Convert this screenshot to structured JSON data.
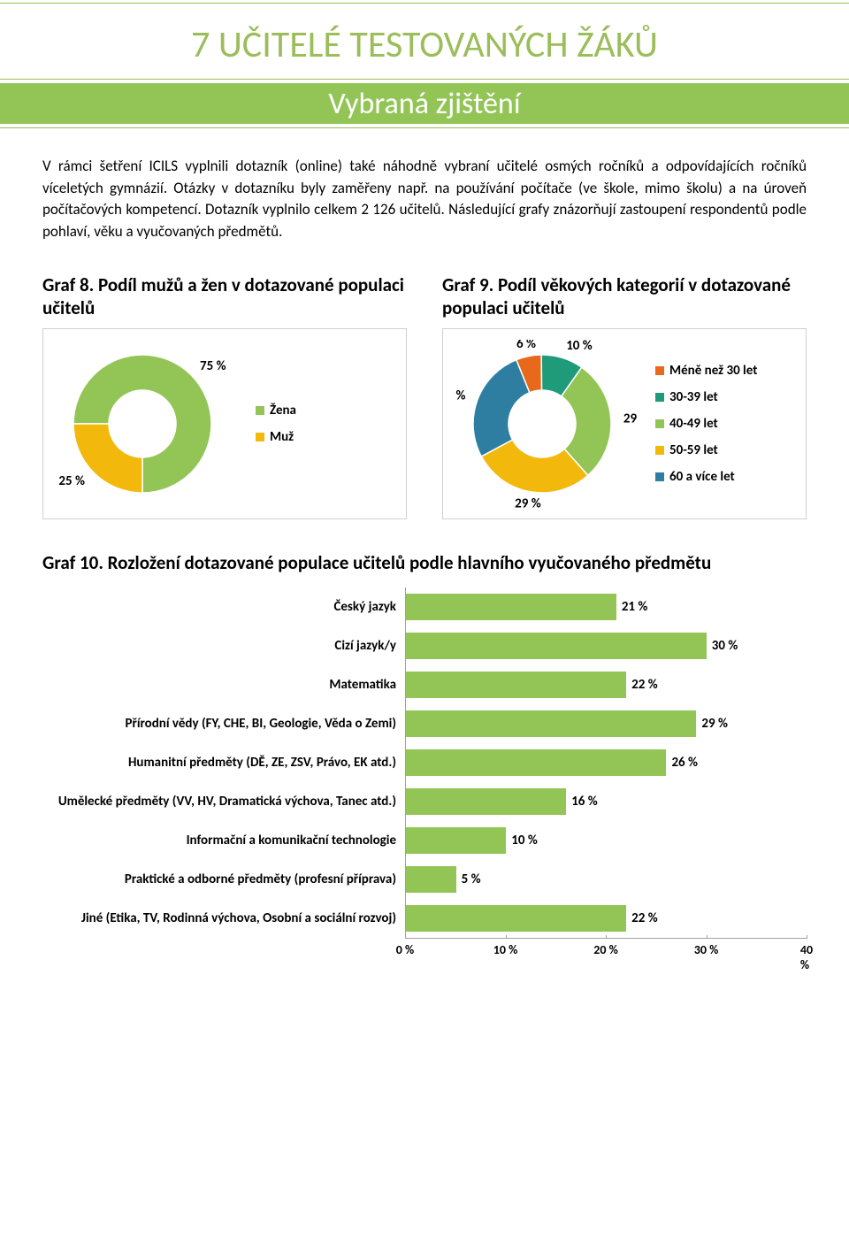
{
  "colors": {
    "accent_green": "#9bbd5a",
    "band_green": "#92c556",
    "bar_green": "#92c556",
    "white": "#ffffff",
    "black": "#000000"
  },
  "header": {
    "chapter_title": "7   UČITELÉ TESTOVANÝCH ŽÁKŮ",
    "subtitle": "Vybraná zjištění"
  },
  "body": {
    "paragraph": "V rámci šetření ICILS vyplnili dotazník (online) také náhodně vybraní učitelé osmých ročníků a odpovídajících ročníků víceletých gymnázií. Otázky v dotazníku byly zaměřeny např. na používání počítače (ve škole, mimo školu) a na úroveň počítačových kompetencí. Dotazník vyplnilo celkem 2 126 učitelů. Následující grafy znázorňují zastoupení respondentů podle pohlaví, věku a vyučovaných předmětů."
  },
  "graf8": {
    "title": "Graf 8. Podíl mužů a žen v dotazované populaci učitelů",
    "type": "donut",
    "slices": [
      {
        "label": "Žena",
        "value": 75,
        "display": "75 %",
        "color": "#92c556"
      },
      {
        "label": "Muž",
        "value": 25,
        "display": "25 %",
        "color": "#f2b90c"
      }
    ],
    "inner_radius": 38,
    "outer_radius": 78
  },
  "graf9": {
    "title": "Graf 9. Podíl věkových kategorií v dotazované populaci učitelů",
    "type": "donut",
    "slices": [
      {
        "label": "Méně než 30 let",
        "value": 6,
        "display": "6 %",
        "color": "#e8681c"
      },
      {
        "label": "30-39 let",
        "value": 10,
        "display": "10 %",
        "color": "#1f9b7a"
      },
      {
        "label": "40-49 let",
        "value": 29,
        "display": "29 %",
        "color": "#92c556"
      },
      {
        "label": "50-59 let",
        "value": 29,
        "display": "29 %",
        "color": "#f2b90c"
      },
      {
        "label": "60 a více let",
        "value": 27,
        "display": "27 %",
        "color": "#2d7ea0"
      }
    ],
    "inner_radius": 38,
    "outer_radius": 78
  },
  "graf10": {
    "title": "Graf 10. Rozložení dotazované populace učitelů podle hlavního vyučovaného předmětu",
    "type": "bar",
    "xlim": [
      0,
      40
    ],
    "xticks": [
      0,
      10,
      20,
      30,
      40
    ],
    "xtick_labels": [
      "0 %",
      "10 %",
      "20 %",
      "30 %",
      "40 %"
    ],
    "bar_color": "#92c556",
    "rows": [
      {
        "label": "Český jazyk",
        "value": 21,
        "display": "21 %"
      },
      {
        "label": "Cizí jazyk/y",
        "value": 30,
        "display": "30 %"
      },
      {
        "label": "Matematika",
        "value": 22,
        "display": "22 %"
      },
      {
        "label": "Přírodní vědy (FY, CHE, BI, Geologie, Věda o Zemi)",
        "value": 29,
        "display": "29 %"
      },
      {
        "label": "Humanitní předměty (DĚ, ZE, ZSV, Právo, EK atd.)",
        "value": 26,
        "display": "26 %"
      },
      {
        "label": "Umělecké předměty (VV, HV, Dramatická výchova, Tanec atd.)",
        "value": 16,
        "display": "16 %"
      },
      {
        "label": "Informační a komunikační technologie",
        "value": 10,
        "display": "10 %"
      },
      {
        "label": "Praktické a odborné předměty (profesní příprava)",
        "value": 5,
        "display": "5 %"
      },
      {
        "label": "Jiné (Etika, TV, Rodinná výchova, Osobní a sociální rozvoj)",
        "value": 22,
        "display": "22 %"
      }
    ]
  }
}
